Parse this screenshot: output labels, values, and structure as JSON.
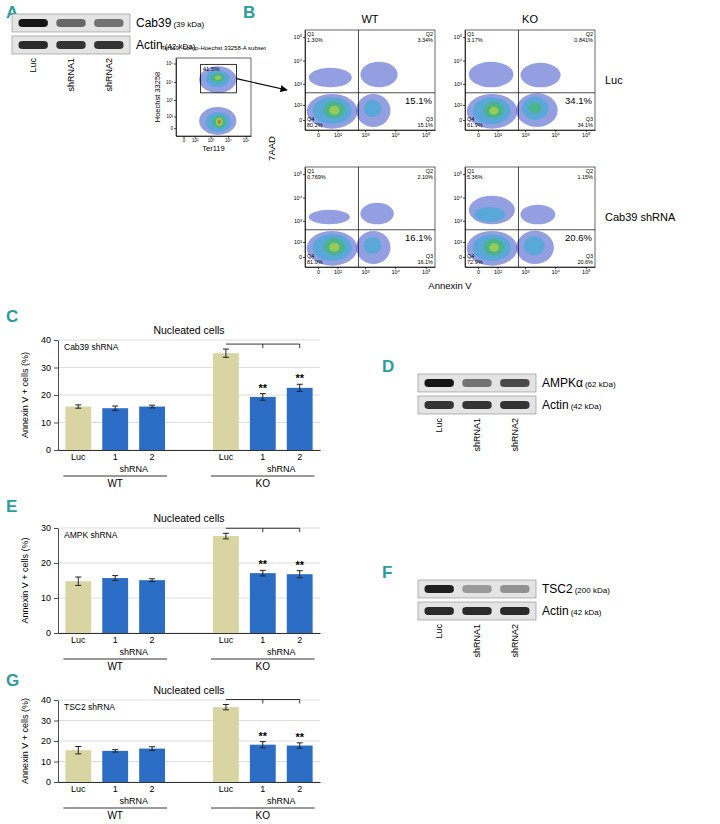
{
  "chart_data": [
    {
      "panel": "A",
      "type": "blot",
      "lanes": [
        "Luc",
        "shRNA1",
        "shRNA2"
      ],
      "intensity_range": [
        0,
        1
      ],
      "rows": [
        {
          "protein": "Cab39",
          "size": "(39 kDa)",
          "intensity": [
            1,
            0.6,
            0.55
          ]
        },
        {
          "protein": "Actin",
          "size": "(42 kDa)",
          "intensity": [
            0.9,
            0.85,
            0.85
          ]
        }
      ]
    },
    {
      "panel": "B",
      "type": "flow",
      "log": true,
      "xlim": [
        -50,
        200000
      ],
      "ylim": [
        -50,
        200000
      ],
      "xticks": [
        0,
        {
          "value": 100,
          "label": "10²"
        },
        {
          "value": 1000,
          "label": "10³"
        },
        {
          "value": 10000,
          "label": "10⁴"
        },
        {
          "value": 100000,
          "label": "10⁵"
        }
      ],
      "yticks": [
        0,
        {
          "value": 100,
          "label": "10²"
        },
        {
          "value": 1000,
          "label": "10³"
        },
        {
          "value": 10000,
          "label": "10⁴"
        },
        {
          "value": 100000,
          "label": "10⁵"
        }
      ],
      "gate_plot": {
        "title": "Ter119, Comp-Hoechst 33258-A subset",
        "x_label": "Ter119",
        "y_label": "Hoechst 33258",
        "gate": {
          "x": [
            250,
            30000
          ],
          "y": [
            2500,
            90000
          ],
          "label": "41.5%"
        },
        "clusters": [
          {
            "x": [
              200,
              30000
            ],
            "y": [
              2500,
              70000
            ],
            "color": "#2a3fc4"
          },
          {
            "x": [
              500,
              12000
            ],
            "y": [
              5000,
              45000
            ],
            "color": "#1fb2d4"
          },
          {
            "x": [
              1000,
              6000
            ],
            "y": [
              9000,
              30000
            ],
            "color": "#3dbf3d"
          },
          {
            "x": [
              1800,
              4000
            ],
            "y": [
              13000,
              22000
            ],
            "color": "#e6e01e"
          },
          {
            "x": [
              200,
              30000
            ],
            "y": [
              -40,
              400
            ],
            "color": "#2a3fc4"
          },
          {
            "x": [
              500,
              15000
            ],
            "y": [
              -20,
              200
            ],
            "color": "#1fb2d4"
          },
          {
            "x": [
              1200,
              8000
            ],
            "y": [
              0,
              120
            ],
            "color": "#3dbf3d"
          },
          {
            "x": [
              2000,
              5000
            ],
            "y": [
              10,
              80
            ],
            "color": "#e6e01e"
          },
          {
            "x": [
              2500,
              4000
            ],
            "y": [
              20,
              60
            ],
            "color": "#e0301e"
          }
        ]
      },
      "columns": [
        "WT",
        "KO"
      ],
      "rows": [
        "Luc",
        "Cab39 shRNA"
      ],
      "x_label": "Annexin V",
      "y_label": "7AAD",
      "plots": [
        [
          {
            "gate": {
              "x": 600,
              "y": 400
            },
            "highlight": "Q3",
            "quadrants": [
              {
                "name": "Q1",
                "label": "1.30%"
              },
              {
                "name": "Q2",
                "label": "3.34%"
              },
              {
                "name": "Q3",
                "label": "15.1%"
              },
              {
                "name": "Q4",
                "label": "80.2%"
              }
            ],
            "clusters": [
              {
                "x": [
                  -40,
                  550
                ],
                "y": [
                  -40,
                  350
                ],
                "color": "#2a3fc4"
              },
              {
                "x": [
                  -15,
                  350
                ],
                "y": [
                  -15,
                  250
                ],
                "color": "#1fb2d4"
              },
              {
                "x": [
                  15,
                  200
                ],
                "y": [
                  5,
                  160
                ],
                "color": "#3dbf3d"
              },
              {
                "x": [
                  40,
                  120
                ],
                "y": [
                  20,
                  90
                ],
                "color": "#e6e01e"
              },
              {
                "x": [
                  500,
                  7000
                ],
                "y": [
                  -30,
                  350
                ],
                "color": "#2a3fc4"
              },
              {
                "x": [
                  900,
                  3500
                ],
                "y": [
                  10,
                  180
                ],
                "color": "#1fb2d4"
              },
              {
                "x": [
                  700,
                  12000
                ],
                "y": [
                  700,
                  9000
                ],
                "color": "#2a3fc4"
              },
              {
                "x": [
                  -30,
                  350
                ],
                "y": [
                  700,
                  5000
                ],
                "color": "#2a3fc4"
              }
            ]
          },
          {
            "gate": {
              "x": 600,
              "y": 400
            },
            "highlight": "Q3",
            "quadrants": [
              {
                "name": "Q1",
                "label": "3.17%"
              },
              {
                "name": "Q2",
                "label": "0.841%"
              },
              {
                "name": "Q3",
                "label": "34.1%"
              },
              {
                "name": "Q4",
                "label": "61.9%"
              }
            ],
            "clusters": [
              {
                "x": [
                  -40,
                  550
                ],
                "y": [
                  -40,
                  350
                ],
                "color": "#2a3fc4"
              },
              {
                "x": [
                  -15,
                  320
                ],
                "y": [
                  -15,
                  240
                ],
                "color": "#1fb2d4"
              },
              {
                "x": [
                  15,
                  180
                ],
                "y": [
                  5,
                  150
                ],
                "color": "#3dbf3d"
              },
              {
                "x": [
                  40,
                  110
                ],
                "y": [
                  20,
                  80
                ],
                "color": "#e6e01e"
              },
              {
                "x": [
                  500,
                  12000
                ],
                "y": [
                  -30,
                  380
                ],
                "color": "#2a3fc4"
              },
              {
                "x": [
                  800,
                  6000
                ],
                "y": [
                  0,
                  260
                ],
                "color": "#1fb2d4"
              },
              {
                "x": [
                  1300,
                  3500
                ],
                "y": [
                  25,
                  140
                ],
                "color": "#3dbf3d"
              },
              {
                "x": [
                  700,
                  15000
                ],
                "y": [
                  700,
                  8000
                ],
                "color": "#2a3fc4"
              },
              {
                "x": [
                  -30,
                  400
                ],
                "y": [
                  700,
                  9000
                ],
                "color": "#2a3fc4"
              }
            ]
          }
        ],
        [
          {
            "gate": {
              "x": 600,
              "y": 400
            },
            "highlight": "Q3",
            "quadrants": [
              {
                "name": "Q1",
                "label": "0.769%"
              },
              {
                "name": "Q2",
                "label": "2.10%"
              },
              {
                "name": "Q3",
                "label": "16.1%"
              },
              {
                "name": "Q4",
                "label": "81.0%"
              }
            ],
            "clusters": [
              {
                "x": [
                  -40,
                  550
                ],
                "y": [
                  -40,
                  350
                ],
                "color": "#2a3fc4"
              },
              {
                "x": [
                  -15,
                  350
                ],
                "y": [
                  -15,
                  250
                ],
                "color": "#1fb2d4"
              },
              {
                "x": [
                  15,
                  200
                ],
                "y": [
                  5,
                  160
                ],
                "color": "#3dbf3d"
              },
              {
                "x": [
                  40,
                  120
                ],
                "y": [
                  20,
                  90
                ],
                "color": "#e6e01e"
              },
              {
                "x": [
                  500,
                  7000
                ],
                "y": [
                  -30,
                  350
                ],
                "color": "#2a3fc4"
              },
              {
                "x": [
                  900,
                  3500
                ],
                "y": [
                  10,
                  180
                ],
                "color": "#1fb2d4"
              },
              {
                "x": [
                  700,
                  9000
                ],
                "y": [
                  700,
                  6000
                ],
                "color": "#2a3fc4"
              },
              {
                "x": [
                  -30,
                  300
                ],
                "y": [
                  700,
                  3000
                ],
                "color": "#2a3fc4"
              }
            ]
          },
          {
            "gate": {
              "x": 600,
              "y": 400
            },
            "highlight": "Q3",
            "quadrants": [
              {
                "name": "Q1",
                "label": "5.36%"
              },
              {
                "name": "Q2",
                "label": "1.15%"
              },
              {
                "name": "Q3",
                "label": "20.6%"
              },
              {
                "name": "Q4",
                "label": "72.9%"
              }
            ],
            "clusters": [
              {
                "x": [
                  -40,
                  550
                ],
                "y": [
                  -40,
                  350
                ],
                "color": "#2a3fc4"
              },
              {
                "x": [
                  -15,
                  330
                ],
                "y": [
                  -15,
                  240
                ],
                "color": "#1fb2d4"
              },
              {
                "x": [
                  15,
                  190
                ],
                "y": [
                  5,
                  150
                ],
                "color": "#3dbf3d"
              },
              {
                "x": [
                  40,
                  115
                ],
                "y": [
                  20,
                  85
                ],
                "color": "#e6e01e"
              },
              {
                "x": [
                  500,
                  9000
                ],
                "y": [
                  -30,
                  360
                ],
                "color": "#2a3fc4"
              },
              {
                "x": [
                  900,
                  4500
                ],
                "y": [
                  5,
                  200
                ],
                "color": "#1fb2d4"
              },
              {
                "x": [
                  700,
                  10000
                ],
                "y": [
                  700,
                  5000
                ],
                "color": "#2a3fc4"
              },
              {
                "x": [
                  -30,
                  450
                ],
                "y": [
                  700,
                  12000
                ],
                "color": "#2a3fc4"
              },
              {
                "x": [
                  -10,
                  200
                ],
                "y": [
                  900,
                  4000
                ],
                "color": "#1fb2d4"
              }
            ]
          }
        ]
      ]
    },
    {
      "panel": "C",
      "type": "bar",
      "title": "Nucleated cells",
      "subtitle": "Cab39 shRNA",
      "y_label": "Annexin V + cells (%)",
      "categories": [
        "Luc",
        "1",
        "2",
        null,
        "Luc",
        "1",
        "2"
      ],
      "groups": [
        {
          "label": "WT",
          "sub_label": "shRNA"
        },
        {
          "label": "KO",
          "sub_label": "shRNA"
        }
      ],
      "values": [
        15.8,
        15.2,
        15.8,
        null,
        35.2,
        19.3,
        22.6
      ],
      "errors": [
        0.6,
        0.8,
        0.5,
        null,
        1.5,
        1.2,
        1.3
      ],
      "colors": [
        "#d8d5a2",
        "#2b6cc4",
        "#2b6cc4",
        null,
        "#d8d5a2",
        "#2b6cc4",
        "#2b6cc4"
      ],
      "significance": [
        null,
        null,
        null,
        null,
        null,
        "**",
        "**"
      ],
      "ylim": [
        0,
        40
      ],
      "yticks": [
        0,
        10,
        20,
        30,
        40
      ],
      "grid": true
    },
    {
      "panel": "D",
      "type": "blot",
      "lanes": [
        "Luc",
        "shRNA1",
        "shRNA2"
      ],
      "intensity_range": [
        0,
        1
      ],
      "rows": [
        {
          "protein": "AMPKα",
          "size": "(62 kDa)",
          "intensity": [
            1,
            0.55,
            0.75
          ]
        },
        {
          "protein": "Actin",
          "size": "(42 kDa)",
          "intensity": [
            0.85,
            0.85,
            0.85
          ]
        }
      ]
    },
    {
      "panel": "E",
      "type": "bar",
      "title": "Nucleated cells",
      "subtitle": "AMPK shRNA",
      "y_label": "Annexin V + cells (%)",
      "categories": [
        "Luc",
        "1",
        "2",
        null,
        "Luc",
        "1",
        "2"
      ],
      "groups": [
        {
          "label": "WT",
          "sub_label": "shRNA"
        },
        {
          "label": "KO",
          "sub_label": "shRNA"
        }
      ],
      "values": [
        14.8,
        15.7,
        15.1,
        null,
        27.7,
        17.1,
        16.8
      ],
      "errors": [
        1.2,
        0.7,
        0.4,
        null,
        0.8,
        0.8,
        1.0
      ],
      "colors": [
        "#d8d5a2",
        "#2b6cc4",
        "#2b6cc4",
        null,
        "#d8d5a2",
        "#2b6cc4",
        "#2b6cc4"
      ],
      "significance": [
        null,
        null,
        null,
        null,
        null,
        "**",
        "**"
      ],
      "ylim": [
        0,
        30
      ],
      "yticks": [
        0,
        10,
        20,
        30
      ],
      "grid": true
    },
    {
      "panel": "F",
      "type": "blot",
      "lanes": [
        "Luc",
        "shRNA1",
        "shRNA2"
      ],
      "intensity_range": [
        0,
        1
      ],
      "rows": [
        {
          "protein": "TSC2",
          "size": "(200 kDa)",
          "intensity": [
            0.95,
            0.35,
            0.4
          ]
        },
        {
          "protein": "Actin",
          "size": "(42 kDa)",
          "intensity": [
            0.9,
            0.9,
            0.9
          ]
        }
      ]
    },
    {
      "panel": "G",
      "type": "bar",
      "title": "Nucleated cells",
      "subtitle": "TSC2 shRNA",
      "y_label": "Annexin V + cells (%)",
      "categories": [
        "Luc",
        "1",
        "2",
        null,
        "Luc",
        "1",
        "2"
      ],
      "groups": [
        {
          "label": "WT",
          "sub_label": "shRNA"
        },
        {
          "label": "KO",
          "sub_label": "shRNA"
        }
      ],
      "values": [
        15.5,
        15.2,
        16.3,
        null,
        36.5,
        18.2,
        17.8
      ],
      "errors": [
        1.8,
        0.6,
        0.9,
        null,
        1.3,
        1.5,
        1.3
      ],
      "colors": [
        "#d8d5a2",
        "#2b6cc4",
        "#2b6cc4",
        null,
        "#d8d5a2",
        "#2b6cc4",
        "#2b6cc4"
      ],
      "significance": [
        null,
        null,
        null,
        null,
        null,
        "**",
        "**"
      ],
      "ylim": [
        0,
        40
      ],
      "yticks": [
        0,
        10,
        20,
        30,
        40
      ],
      "grid": true
    }
  ]
}
